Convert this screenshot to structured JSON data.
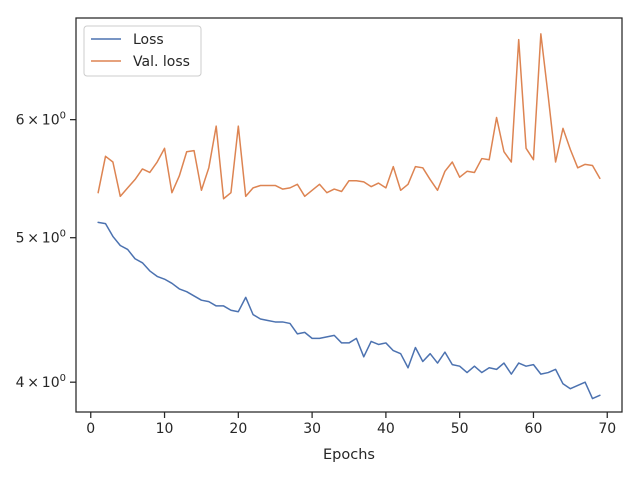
{
  "chart_data": {
    "type": "line",
    "title": "",
    "xlabel": "Epochs",
    "ylabel": "",
    "yscale": "log",
    "xlim": [
      -2,
      72
    ],
    "ylim": [
      3.82,
      7.02
    ],
    "xticks": [
      0,
      10,
      20,
      30,
      40,
      50,
      60,
      70
    ],
    "xtick_labels": [
      "0",
      "10",
      "20",
      "30",
      "40",
      "50",
      "60",
      "70"
    ],
    "yticks": [
      4,
      5,
      6
    ],
    "ytick_labels": [
      {
        "mantissa": "4",
        "times": "×",
        "base": "10",
        "exp": "0"
      },
      {
        "mantissa": "5",
        "times": "×",
        "base": "10",
        "exp": "0"
      },
      {
        "mantissa": "6",
        "times": "×",
        "base": "10",
        "exp": "0"
      }
    ],
    "legend_position": "top-left",
    "x": [
      1,
      2,
      3,
      4,
      5,
      6,
      7,
      8,
      9,
      10,
      11,
      12,
      13,
      14,
      15,
      16,
      17,
      18,
      19,
      20,
      21,
      22,
      23,
      24,
      25,
      26,
      27,
      28,
      29,
      30,
      31,
      32,
      33,
      34,
      35,
      36,
      37,
      38,
      39,
      40,
      41,
      42,
      43,
      44,
      45,
      46,
      47,
      48,
      49,
      50,
      51,
      52,
      53,
      54,
      55,
      56,
      57,
      58,
      59,
      60,
      61,
      62,
      63,
      64,
      65,
      66,
      67,
      68,
      69
    ],
    "series": [
      {
        "name": "Loss",
        "color": "#4c72b0",
        "values": [
          5.12,
          5.11,
          5.01,
          4.94,
          4.91,
          4.84,
          4.81,
          4.75,
          4.71,
          4.69,
          4.66,
          4.62,
          4.6,
          4.57,
          4.54,
          4.53,
          4.5,
          4.5,
          4.47,
          4.46,
          4.56,
          4.44,
          4.41,
          4.4,
          4.39,
          4.39,
          4.38,
          4.31,
          4.32,
          4.28,
          4.28,
          4.29,
          4.3,
          4.25,
          4.25,
          4.28,
          4.16,
          4.26,
          4.24,
          4.25,
          4.2,
          4.18,
          4.09,
          4.22,
          4.13,
          4.18,
          4.12,
          4.19,
          4.11,
          4.1,
          4.06,
          4.1,
          4.06,
          4.09,
          4.08,
          4.12,
          4.05,
          4.12,
          4.1,
          4.11,
          4.05,
          4.06,
          4.08,
          3.99,
          3.96,
          3.98,
          4.0,
          3.9,
          3.92
        ]
      },
      {
        "name": "Val. loss",
        "color": "#dd8452",
        "values": [
          5.36,
          5.67,
          5.62,
          5.33,
          5.4,
          5.47,
          5.56,
          5.53,
          5.62,
          5.74,
          5.36,
          5.5,
          5.71,
          5.72,
          5.38,
          5.57,
          5.94,
          5.31,
          5.36,
          5.94,
          5.33,
          5.4,
          5.42,
          5.42,
          5.42,
          5.39,
          5.4,
          5.43,
          5.33,
          5.38,
          5.43,
          5.36,
          5.39,
          5.37,
          5.46,
          5.46,
          5.45,
          5.41,
          5.44,
          5.4,
          5.58,
          5.38,
          5.43,
          5.58,
          5.57,
          5.47,
          5.38,
          5.54,
          5.62,
          5.49,
          5.54,
          5.53,
          5.65,
          5.64,
          6.02,
          5.71,
          5.62,
          6.79,
          5.74,
          5.64,
          6.85,
          6.22,
          5.62,
          5.92,
          5.73,
          5.57,
          5.6,
          5.59,
          5.48
        ]
      }
    ]
  }
}
